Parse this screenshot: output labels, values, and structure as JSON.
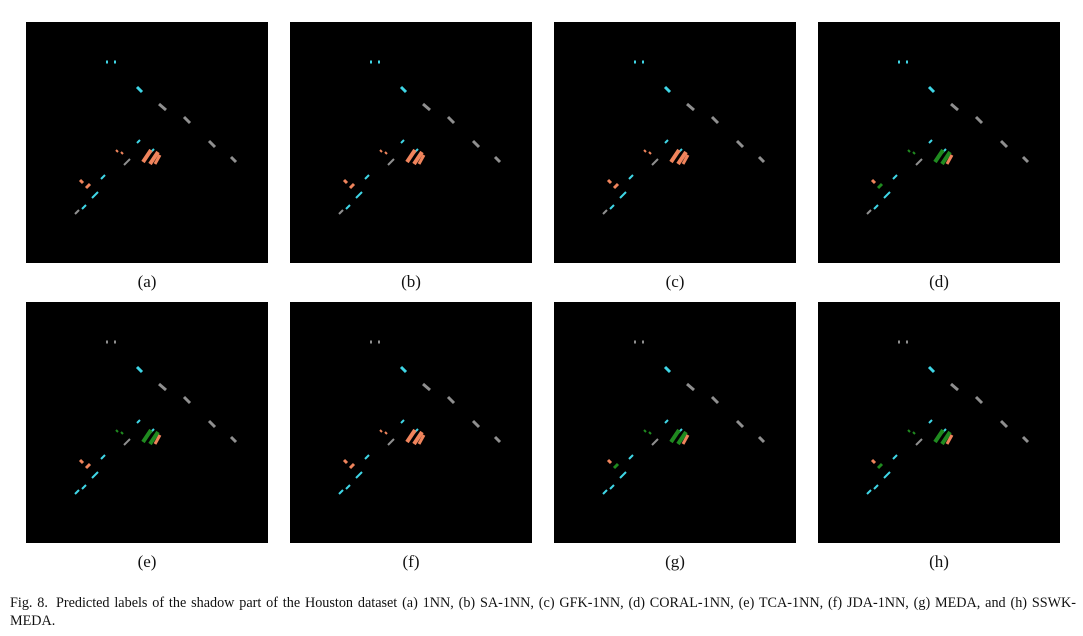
{
  "figure": {
    "panels": [
      {
        "label": "(a)",
        "method": "1NN"
      },
      {
        "label": "(b)",
        "method": "SA-1NN"
      },
      {
        "label": "(c)",
        "method": "GFK-1NN"
      },
      {
        "label": "(d)",
        "method": "CORAL-1NN"
      },
      {
        "label": "(e)",
        "method": "TCA-1NN"
      },
      {
        "label": "(f)",
        "method": "JDA-1NN"
      },
      {
        "label": "(g)",
        "method": "MEDA"
      },
      {
        "label": "(h)",
        "method": "SSWK-MEDA"
      }
    ],
    "caption_label": "Fig. 8.",
    "caption_text": "Predicted labels of the shadow part of the Houston dataset (a) 1NN, (b) SA-1NN, (c) GFK-1NN, (d) CORAL-1NN, (e) TCA-1NN, (f) JDA-1NN, (g) MEDA, and (h) SSWK-MEDA."
  },
  "colors": {
    "background": "#000000",
    "cyan": "#3fd6e6",
    "gray": "#8f8f8f",
    "orange": "#f0845c",
    "green": "#1f8a1f"
  }
}
